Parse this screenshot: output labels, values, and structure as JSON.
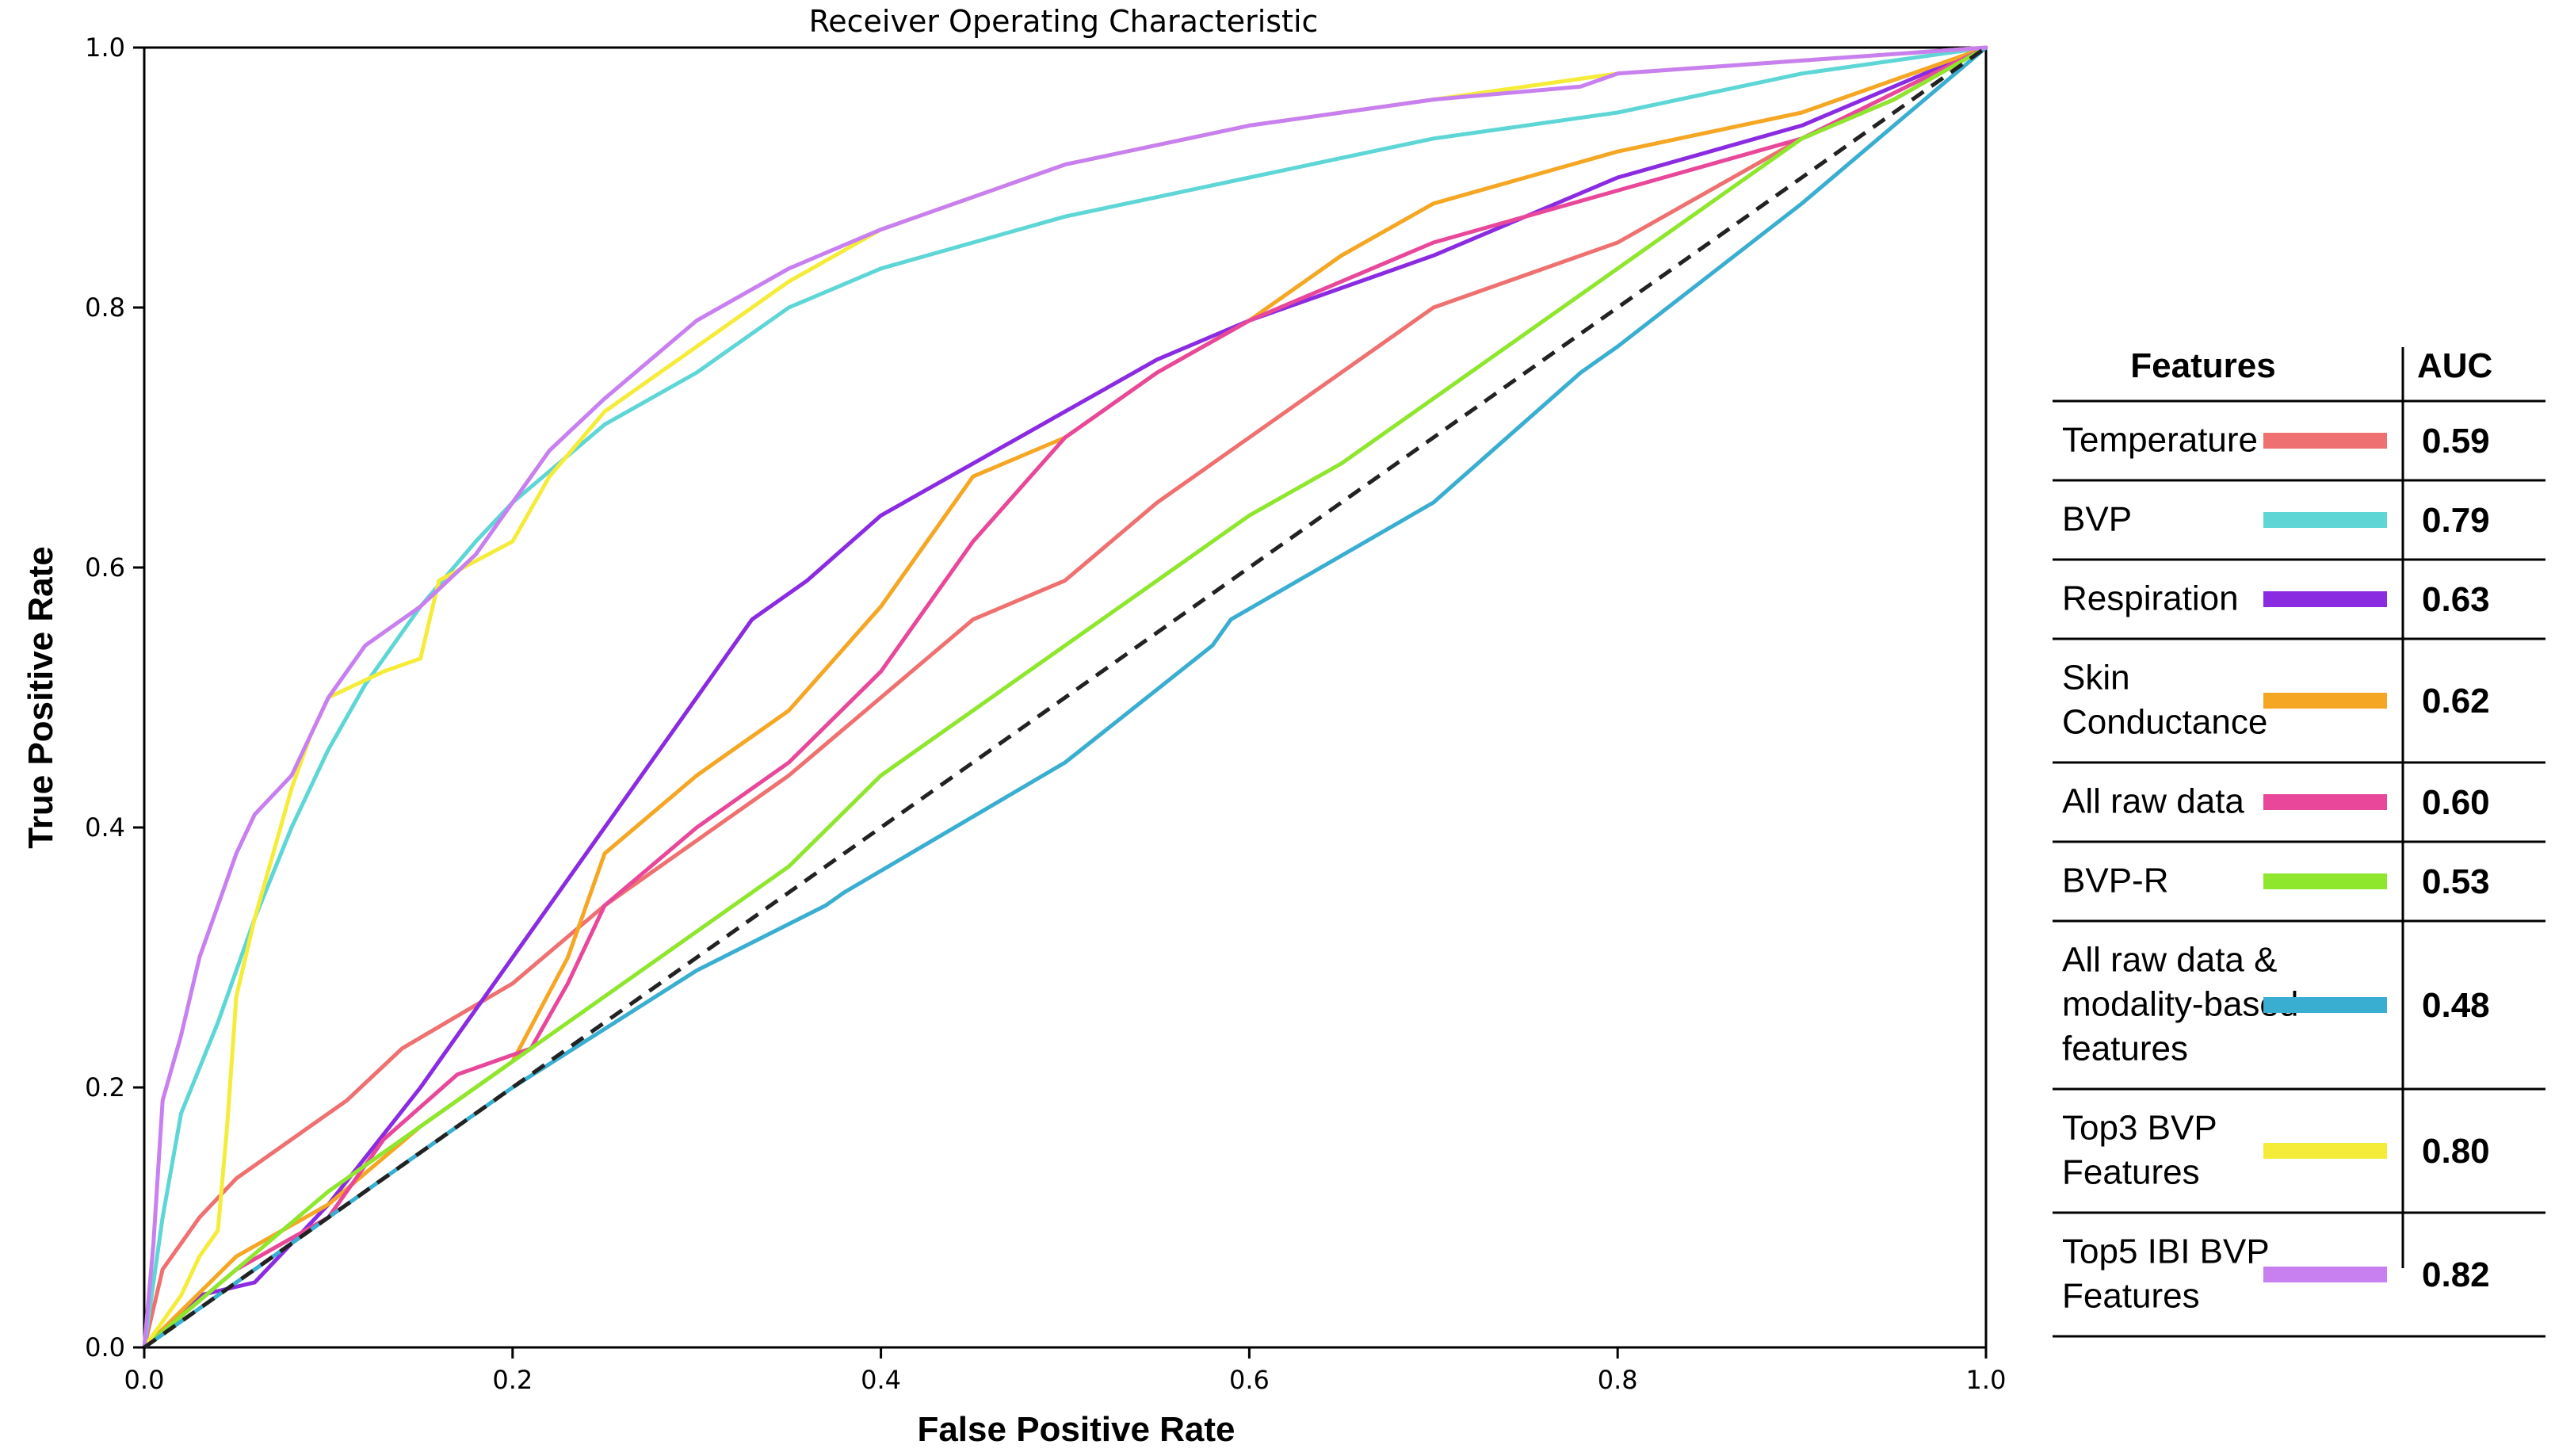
{
  "chart_data": {
    "type": "line",
    "title": "Receiver Operating Characteristic",
    "xlabel": "False Positive Rate",
    "ylabel": "True Positive Rate",
    "xlim": [
      0,
      1
    ],
    "ylim": [
      0,
      1
    ],
    "xticks": [
      "0.0",
      "0.2",
      "0.4",
      "0.6",
      "0.8",
      "1.0"
    ],
    "yticks": [
      "0.0",
      "0.2",
      "0.4",
      "0.6",
      "0.8",
      "1.0"
    ],
    "grid": false,
    "legend": {
      "placement": "right",
      "header_features": "Features",
      "header_auc": "AUC"
    },
    "reference_line": {
      "style": "dashed",
      "color": "#222222",
      "points": [
        [
          0,
          0
        ],
        [
          1,
          1
        ]
      ]
    },
    "series": [
      {
        "name": [
          "Temperature"
        ],
        "auc": "0.59",
        "color": "#ef7070",
        "points": [
          [
            0,
            0
          ],
          [
            0.01,
            0.06
          ],
          [
            0.03,
            0.1
          ],
          [
            0.05,
            0.13
          ],
          [
            0.08,
            0.16
          ],
          [
            0.11,
            0.19
          ],
          [
            0.14,
            0.23
          ],
          [
            0.2,
            0.28
          ],
          [
            0.25,
            0.34
          ],
          [
            0.3,
            0.39
          ],
          [
            0.35,
            0.44
          ],
          [
            0.4,
            0.5
          ],
          [
            0.45,
            0.56
          ],
          [
            0.5,
            0.59
          ],
          [
            0.55,
            0.65
          ],
          [
            0.6,
            0.7
          ],
          [
            0.65,
            0.75
          ],
          [
            0.7,
            0.8
          ],
          [
            0.8,
            0.85
          ],
          [
            0.85,
            0.89
          ],
          [
            0.9,
            0.93
          ],
          [
            0.95,
            0.96
          ],
          [
            1,
            1
          ]
        ]
      },
      {
        "name": [
          "BVP"
        ],
        "auc": "0.79",
        "color": "#5ed6d6",
        "points": [
          [
            0,
            0
          ],
          [
            0.01,
            0.1
          ],
          [
            0.02,
            0.18
          ],
          [
            0.04,
            0.25
          ],
          [
            0.06,
            0.33
          ],
          [
            0.08,
            0.4
          ],
          [
            0.1,
            0.46
          ],
          [
            0.12,
            0.51
          ],
          [
            0.15,
            0.57
          ],
          [
            0.18,
            0.62
          ],
          [
            0.2,
            0.65
          ],
          [
            0.25,
            0.71
          ],
          [
            0.3,
            0.75
          ],
          [
            0.35,
            0.8
          ],
          [
            0.4,
            0.83
          ],
          [
            0.5,
            0.87
          ],
          [
            0.6,
            0.9
          ],
          [
            0.7,
            0.93
          ],
          [
            0.8,
            0.95
          ],
          [
            0.9,
            0.98
          ],
          [
            1,
            1
          ]
        ]
      },
      {
        "name": [
          "Respiration"
        ],
        "auc": "0.63",
        "color": "#8a2be2",
        "points": [
          [
            0,
            0
          ],
          [
            0.03,
            0.04
          ],
          [
            0.06,
            0.05
          ],
          [
            0.1,
            0.11
          ],
          [
            0.15,
            0.2
          ],
          [
            0.2,
            0.3
          ],
          [
            0.25,
            0.4
          ],
          [
            0.3,
            0.5
          ],
          [
            0.33,
            0.56
          ],
          [
            0.36,
            0.59
          ],
          [
            0.4,
            0.64
          ],
          [
            0.45,
            0.68
          ],
          [
            0.5,
            0.72
          ],
          [
            0.55,
            0.76
          ],
          [
            0.6,
            0.79
          ],
          [
            0.7,
            0.84
          ],
          [
            0.8,
            0.9
          ],
          [
            0.9,
            0.94
          ],
          [
            1,
            1
          ]
        ]
      },
      {
        "name": [
          "Skin",
          "Conductance"
        ],
        "auc": "0.62",
        "color": "#f5a623",
        "points": [
          [
            0,
            0
          ],
          [
            0.05,
            0.07
          ],
          [
            0.1,
            0.11
          ],
          [
            0.15,
            0.17
          ],
          [
            0.2,
            0.22
          ],
          [
            0.23,
            0.3
          ],
          [
            0.25,
            0.38
          ],
          [
            0.3,
            0.44
          ],
          [
            0.35,
            0.49
          ],
          [
            0.4,
            0.57
          ],
          [
            0.45,
            0.67
          ],
          [
            0.5,
            0.7
          ],
          [
            0.55,
            0.75
          ],
          [
            0.6,
            0.79
          ],
          [
            0.65,
            0.84
          ],
          [
            0.7,
            0.88
          ],
          [
            0.75,
            0.9
          ],
          [
            0.8,
            0.92
          ],
          [
            0.9,
            0.95
          ],
          [
            1,
            1
          ]
        ]
      },
      {
        "name": [
          "All raw data"
        ],
        "auc": "0.60",
        "color": "#e8479a",
        "points": [
          [
            0,
            0
          ],
          [
            0.05,
            0.06
          ],
          [
            0.1,
            0.1
          ],
          [
            0.13,
            0.16
          ],
          [
            0.17,
            0.21
          ],
          [
            0.21,
            0.23
          ],
          [
            0.23,
            0.28
          ],
          [
            0.25,
            0.34
          ],
          [
            0.3,
            0.4
          ],
          [
            0.35,
            0.45
          ],
          [
            0.4,
            0.52
          ],
          [
            0.45,
            0.62
          ],
          [
            0.5,
            0.7
          ],
          [
            0.55,
            0.75
          ],
          [
            0.6,
            0.79
          ],
          [
            0.65,
            0.82
          ],
          [
            0.7,
            0.85
          ],
          [
            0.8,
            0.89
          ],
          [
            0.9,
            0.93
          ],
          [
            1,
            1
          ]
        ]
      },
      {
        "name": [
          "BVP-R"
        ],
        "auc": "0.53",
        "color": "#8ee62d",
        "points": [
          [
            0,
            0
          ],
          [
            0.05,
            0.06
          ],
          [
            0.1,
            0.12
          ],
          [
            0.15,
            0.17
          ],
          [
            0.2,
            0.22
          ],
          [
            0.25,
            0.27
          ],
          [
            0.3,
            0.32
          ],
          [
            0.35,
            0.37
          ],
          [
            0.4,
            0.44
          ],
          [
            0.45,
            0.49
          ],
          [
            0.5,
            0.54
          ],
          [
            0.55,
            0.59
          ],
          [
            0.6,
            0.64
          ],
          [
            0.65,
            0.68
          ],
          [
            0.7,
            0.73
          ],
          [
            0.75,
            0.78
          ],
          [
            0.8,
            0.83
          ],
          [
            0.85,
            0.88
          ],
          [
            0.9,
            0.93
          ],
          [
            0.95,
            0.96
          ],
          [
            1,
            1
          ]
        ]
      },
      {
        "name": [
          "All raw data &",
          "modality-based",
          "features"
        ],
        "auc": "0.48",
        "color": "#3aaed0",
        "points": [
          [
            0,
            0
          ],
          [
            0.1,
            0.1
          ],
          [
            0.2,
            0.2
          ],
          [
            0.3,
            0.29
          ],
          [
            0.37,
            0.34
          ],
          [
            0.38,
            0.35
          ],
          [
            0.5,
            0.45
          ],
          [
            0.58,
            0.54
          ],
          [
            0.59,
            0.56
          ],
          [
            0.7,
            0.65
          ],
          [
            0.78,
            0.75
          ],
          [
            0.8,
            0.77
          ],
          [
            0.9,
            0.88
          ],
          [
            1,
            1
          ]
        ]
      },
      {
        "name": [
          "Top3 BVP",
          "Features"
        ],
        "auc": "0.80",
        "color": "#f5ec3a",
        "points": [
          [
            0,
            0
          ],
          [
            0.02,
            0.04
          ],
          [
            0.03,
            0.07
          ],
          [
            0.04,
            0.09
          ],
          [
            0.045,
            0.17
          ],
          [
            0.05,
            0.27
          ],
          [
            0.06,
            0.33
          ],
          [
            0.07,
            0.38
          ],
          [
            0.08,
            0.43
          ],
          [
            0.09,
            0.47
          ],
          [
            0.1,
            0.5
          ],
          [
            0.13,
            0.52
          ],
          [
            0.15,
            0.53
          ],
          [
            0.16,
            0.59
          ],
          [
            0.2,
            0.62
          ],
          [
            0.22,
            0.67
          ],
          [
            0.25,
            0.72
          ],
          [
            0.3,
            0.77
          ],
          [
            0.35,
            0.82
          ],
          [
            0.4,
            0.86
          ],
          [
            0.5,
            0.91
          ],
          [
            0.6,
            0.94
          ],
          [
            0.7,
            0.96
          ],
          [
            0.8,
            0.98
          ],
          [
            0.9,
            0.99
          ],
          [
            1,
            1
          ]
        ]
      },
      {
        "name": [
          "Top5 IBI BVP",
          "Features"
        ],
        "auc": "0.82",
        "color": "#c87ff0",
        "points": [
          [
            0,
            0
          ],
          [
            0.005,
            0.08
          ],
          [
            0.01,
            0.19
          ],
          [
            0.02,
            0.24
          ],
          [
            0.03,
            0.3
          ],
          [
            0.04,
            0.34
          ],
          [
            0.05,
            0.38
          ],
          [
            0.06,
            0.41
          ],
          [
            0.08,
            0.44
          ],
          [
            0.1,
            0.5
          ],
          [
            0.12,
            0.54
          ],
          [
            0.15,
            0.57
          ],
          [
            0.18,
            0.61
          ],
          [
            0.2,
            0.65
          ],
          [
            0.22,
            0.69
          ],
          [
            0.25,
            0.73
          ],
          [
            0.3,
            0.79
          ],
          [
            0.35,
            0.83
          ],
          [
            0.4,
            0.86
          ],
          [
            0.5,
            0.91
          ],
          [
            0.6,
            0.94
          ],
          [
            0.7,
            0.96
          ],
          [
            0.78,
            0.97
          ],
          [
            0.8,
            0.98
          ],
          [
            0.9,
            0.99
          ],
          [
            1,
            1
          ]
        ]
      }
    ]
  }
}
